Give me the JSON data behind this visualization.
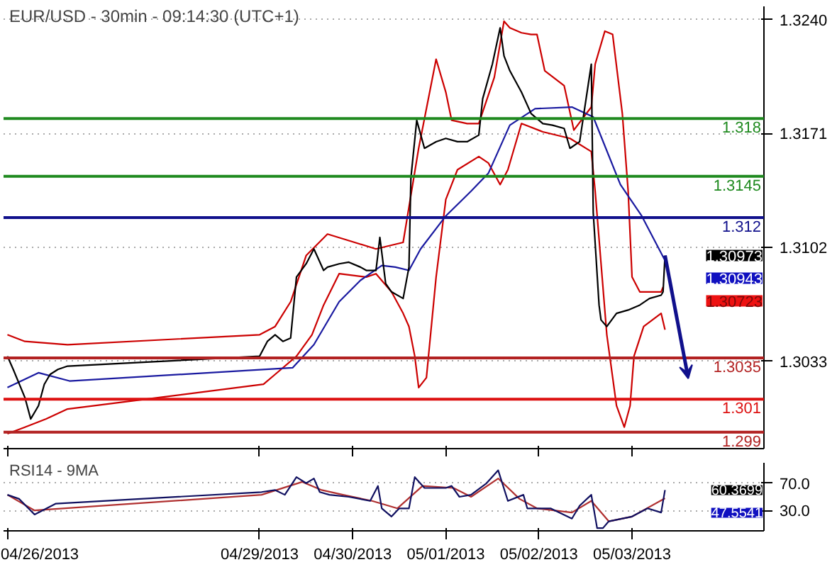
{
  "chart_data": [
    {
      "type": "line",
      "title": "EUR/USD - 30min - 09:14:30 (UTC+1)",
      "xlim": [
        "2013-04-26T06:00",
        "2013-05-04T10:00"
      ],
      "xticks": [
        {
          "value": "2013-04-26T07:00",
          "label": null
        },
        {
          "value": "2013-04-29",
          "label": null
        },
        {
          "value": "2013-04-30",
          "label": null
        },
        {
          "value": "2013-05-01",
          "label": null
        },
        {
          "value": "2013-05-02",
          "label": null
        },
        {
          "value": "2013-05-03",
          "label": null
        }
      ],
      "ylim": [
        1.298,
        1.3248
      ],
      "yticks": [
        {
          "value": 1.324,
          "label": "1.3240"
        },
        1.3171,
        1.3102,
        1.3033
      ],
      "grid": "y",
      "tick_labels": "y",
      "series": [
        {
          "color": "#cc0000",
          "x": [
            "2013-04-26T07:00",
            "2013-04-26T11:30",
            "2013-04-26T22:30",
            "2013-04-29T00:00",
            "2013-04-29T04:00",
            "2013-04-29T08:00",
            "2013-04-29T12:00",
            "2013-04-29T17:30",
            "2013-04-30T00:30",
            "2013-04-30T06:00",
            "2013-04-30T13:00",
            "2013-04-30T17:00",
            "2013-04-30T21:30",
            "2013-05-01T00:00",
            "2013-05-01T01:30",
            "2013-05-01T05:30",
            "2013-05-01T08:30",
            "2013-05-01T12:30",
            "2013-05-01T15:00",
            "2013-05-01T16:30",
            "2013-05-01T19:30",
            "2013-05-01T22:00",
            "2013-05-01T23:30",
            "2013-05-02T01:30",
            "2013-05-02T06:30",
            "2013-05-02T09:00",
            "2013-05-02T13:30",
            "2013-05-02T14:30",
            "2013-05-02T17:00",
            "2013-05-02T19:00",
            "2013-05-02T21:30",
            "2013-05-02T23:00",
            "2013-05-03T00:00",
            "2013-05-03T02:00",
            "2013-05-03T07:30",
            "2013-05-03T08:00"
          ],
          "values": [
            1.3049,
            1.3045,
            1.3043,
            1.3049,
            1.3054,
            1.3069,
            1.3097,
            1.311,
            1.3105,
            1.3101,
            1.3105,
            1.3162,
            1.3216,
            1.3196,
            1.3179,
            1.3177,
            1.3177,
            1.3205,
            1.3239,
            1.3235,
            1.3232,
            1.3231,
            1.3231,
            1.3209,
            1.32,
            1.3173,
            1.3187,
            1.3213,
            1.3233,
            1.3231,
            1.3183,
            1.3136,
            1.3084,
            1.3075,
            1.3075,
            1.3078
          ]
        },
        {
          "color": "#cc0000",
          "x": [
            "2013-04-26T07:00",
            "2013-04-26T11:30",
            "2013-04-26T17:00",
            "2013-04-26T22:30",
            "2013-04-29T01:00",
            "2013-04-29T04:00",
            "2013-04-29T09:30",
            "2013-04-29T13:30",
            "2013-04-29T16:30",
            "2013-04-29T20:30",
            "2013-04-30T03:30",
            "2013-04-30T06:00",
            "2013-04-30T10:00",
            "2013-04-30T13:00",
            "2013-04-30T14:30",
            "2013-04-30T16:00",
            "2013-04-30T17:00",
            "2013-04-30T19:00",
            "2013-04-30T21:30",
            "2013-05-01T00:00",
            "2013-05-01T03:00",
            "2013-05-01T08:30",
            "2013-05-01T11:00",
            "2013-05-01T14:00",
            "2013-05-01T16:00",
            "2013-05-01T19:30",
            "2013-05-02T01:00",
            "2013-05-02T08:00",
            "2013-05-02T13:30",
            "2013-05-02T14:30",
            "2013-05-02T17:30",
            "2013-05-02T20:00",
            "2013-05-02T22:00",
            "2013-05-02T23:30",
            "2013-05-03T00:30",
            "2013-05-03T03:00",
            "2013-05-03T07:30",
            "2013-05-03T08:30"
          ],
          "values": [
            1.2989,
            1.2993,
            1.2998,
            1.3004,
            1.3019,
            1.3025,
            1.3036,
            1.3049,
            1.3067,
            1.3086,
            1.3084,
            1.3086,
            1.3075,
            1.3062,
            1.3054,
            1.3036,
            1.3017,
            1.3023,
            1.3084,
            1.3131,
            1.3149,
            1.3157,
            1.3153,
            1.314,
            1.3149,
            1.3177,
            1.3172,
            1.3168,
            1.316,
            1.3136,
            1.3049,
            1.3006,
            1.2993,
            1.3006,
            1.3036,
            1.3054,
            1.3062,
            1.3052
          ]
        },
        {
          "color": "#1a1aa0",
          "x": [
            "2013-04-26T07:00",
            "2013-04-26T15:00",
            "2013-04-26T23:00",
            "2013-04-29T08:30",
            "2013-04-29T14:00",
            "2013-04-29T20:30",
            "2013-04-30T02:00",
            "2013-04-30T07:30",
            "2013-04-30T11:00",
            "2013-04-30T14:30",
            "2013-04-30T17:30",
            "2013-05-01T00:00",
            "2013-05-01T06:30",
            "2013-05-01T11:00",
            "2013-05-01T16:30",
            "2013-05-01T23:00",
            "2013-05-02T08:30",
            "2013-05-02T14:00",
            "2013-05-02T21:00",
            "2013-05-03T02:30",
            "2013-05-03T08:30"
          ],
          "values": [
            1.3017,
            1.3026,
            1.3021,
            1.3029,
            1.3043,
            1.3069,
            1.3082,
            1.3091,
            1.309,
            1.3088,
            1.3101,
            1.3121,
            1.3136,
            1.3147,
            1.3176,
            1.3186,
            1.3187,
            1.3181,
            1.314,
            1.3121,
            1.3094
          ]
        },
        {
          "color": "#000000",
          "x": [
            "2013-04-26T07:00",
            "2013-04-26T08:30",
            "2013-04-26T11:30",
            "2013-04-26T13:00",
            "2013-04-26T15:00",
            "2013-04-26T16:30",
            "2013-04-26T18:00",
            "2013-04-26T20:00",
            "2013-04-26T22:30",
            "2013-04-29T00:00",
            "2013-04-29T02:00",
            "2013-04-29T04:00",
            "2013-04-29T06:00",
            "2013-04-29T08:00",
            "2013-04-29T09:30",
            "2013-04-29T12:00",
            "2013-04-29T14:00",
            "2013-04-29T16:30",
            "2013-04-29T17:30",
            "2013-04-29T20:30",
            "2013-04-29T23:00",
            "2013-04-30T02:00",
            "2013-04-30T03:30",
            "2013-04-30T06:00",
            "2013-04-30T07:00",
            "2013-04-30T08:30",
            "2013-04-30T10:00",
            "2013-04-30T13:00",
            "2013-04-30T14:30",
            "2013-04-30T15:00",
            "2013-04-30T16:30",
            "2013-04-30T18:30",
            "2013-04-30T21:30",
            "2013-05-01T00:00",
            "2013-05-01T03:00",
            "2013-05-01T05:30",
            "2013-05-01T08:30",
            "2013-05-01T09:30",
            "2013-05-01T12:00",
            "2013-05-01T14:00",
            "2013-05-01T15:00",
            "2013-05-01T16:30",
            "2013-05-01T19:30",
            "2013-05-01T22:00",
            "2013-05-02T01:00",
            "2013-05-02T03:30",
            "2013-05-02T06:30",
            "2013-05-02T08:00",
            "2013-05-02T10:30",
            "2013-05-02T13:30",
            "2013-05-02T14:00",
            "2013-05-02T15:30",
            "2013-05-02T16:00",
            "2013-05-02T17:30",
            "2013-05-02T20:00",
            "2013-05-02T23:00",
            "2013-05-03T02:00",
            "2013-05-03T04:30",
            "2013-05-03T07:30",
            "2013-05-03T08:00",
            "2013-05-03T08:30"
          ],
          "values": [
            1.3036,
            1.3028,
            1.3011,
            1.2998,
            1.3006,
            1.3019,
            1.3025,
            1.3028,
            1.303,
            1.3036,
            1.3045,
            1.3049,
            1.3045,
            1.3047,
            1.3084,
            1.3092,
            1.3101,
            1.3088,
            1.309,
            1.3092,
            1.3093,
            1.309,
            1.3088,
            1.3088,
            1.3108,
            1.308,
            1.3075,
            1.3071,
            1.309,
            1.3144,
            1.3179,
            1.3162,
            1.3166,
            1.3168,
            1.3166,
            1.3166,
            1.317,
            1.3192,
            1.3213,
            1.3235,
            1.3218,
            1.3209,
            1.3196,
            1.3183,
            1.3177,
            1.3176,
            1.3174,
            1.3162,
            1.3166,
            1.3213,
            1.3123,
            1.3067,
            1.3058,
            1.3054,
            1.3062,
            1.3064,
            1.3067,
            1.3071,
            1.3073,
            1.3075,
            1.3097
          ]
        }
      ],
      "ref_lines": [
        {
          "axis": "y",
          "value": 1.318,
          "label": "1.318",
          "color": "#1f8a1f"
        },
        {
          "axis": "y",
          "value": 1.3145,
          "label": "1.3145",
          "color": "#1f8a1f"
        },
        {
          "axis": "y",
          "value": 1.312,
          "label": "1.312",
          "color": "#10108c"
        },
        {
          "axis": "y",
          "value": 1.3035,
          "label": "1.3035",
          "color": "#b22222"
        },
        {
          "axis": "y",
          "value": 1.301,
          "label": "1.301",
          "color": "#dd1111"
        },
        {
          "axis": "y",
          "value": 1.299,
          "label": "1.299",
          "color": "#b22222"
        }
      ],
      "annotations": [
        "1.30973",
        "1.30943",
        "1.30723"
      ]
    },
    {
      "type": "line",
      "title": "RSI14 - 9MA",
      "xlim": [
        "2013-04-26T06:00",
        "2013-05-04T10:00"
      ],
      "xticks": [
        {
          "value": "2013-04-26T07:00",
          "label": "04/26/2013"
        },
        {
          "value": "2013-04-29",
          "label": "04/29/2013"
        },
        {
          "value": "2013-04-30",
          "label": "04/30/2013"
        },
        {
          "value": "2013-05-01",
          "label": "05/01/2013"
        },
        {
          "value": "2013-05-02",
          "label": "05/02/2013"
        },
        {
          "value": "2013-05-03",
          "label": "05/03/2013"
        }
      ],
      "ylim": [
        0,
        100
      ],
      "yticks": [
        {
          "value": 70,
          "label": "70.0"
        },
        {
          "value": 30,
          "label": "30.0"
        }
      ],
      "grid": "y",
      "series": [
        {
          "color": "#b03030",
          "x": [
            "2013-04-26T07:00",
            "2013-04-26T14:00",
            "2013-04-29T00:30",
            "2013-04-29T11:00",
            "2013-04-29T16:00",
            "2013-04-29T21:30",
            "2013-04-30T05:00",
            "2013-04-30T11:30",
            "2013-04-30T18:00",
            "2013-05-01T02:00",
            "2013-05-01T06:30",
            "2013-05-01T13:30",
            "2013-05-01T19:00",
            "2013-05-01T23:30",
            "2013-05-02T08:30",
            "2013-05-02T13:30",
            "2013-05-02T18:00",
            "2013-05-03T00:00",
            "2013-05-03T08:30"
          ],
          "values": [
            53,
            30,
            53,
            72,
            60,
            53,
            44,
            33,
            66,
            63,
            50,
            77,
            47,
            33,
            27,
            44,
            14,
            21,
            48
          ]
        },
        {
          "color": "#101060",
          "x": [
            "2013-04-26T07:00",
            "2013-04-26T10:00",
            "2013-04-26T14:00",
            "2013-04-26T19:30",
            "2013-04-29T00:30",
            "2013-04-29T04:00",
            "2013-04-29T06:30",
            "2013-04-29T09:30",
            "2013-04-29T12:00",
            "2013-04-29T14:00",
            "2013-04-29T15:30",
            "2013-04-29T18:00",
            "2013-04-29T23:00",
            "2013-04-30T04:30",
            "2013-04-30T06:30",
            "2013-04-30T07:30",
            "2013-04-30T10:00",
            "2013-04-30T12:00",
            "2013-04-30T14:30",
            "2013-04-30T16:00",
            "2013-04-30T18:30",
            "2013-05-01T00:00",
            "2013-05-01T01:30",
            "2013-05-01T03:30",
            "2013-05-01T06:30",
            "2013-05-01T10:30",
            "2013-05-01T13:30",
            "2013-05-01T16:00",
            "2013-05-01T20:00",
            "2013-05-01T21:00",
            "2013-05-02T03:00",
            "2013-05-02T08:30",
            "2013-05-02T10:30",
            "2013-05-02T13:30",
            "2013-05-02T15:00",
            "2013-05-02T16:30",
            "2013-05-02T18:00",
            "2013-05-03T00:00",
            "2013-05-03T04:00",
            "2013-05-03T07:30",
            "2013-05-03T08:30"
          ],
          "values": [
            53,
            47,
            24,
            40,
            57,
            60,
            53,
            79,
            70,
            77,
            57,
            53,
            50,
            44,
            66,
            33,
            21,
            33,
            33,
            79,
            63,
            63,
            66,
            50,
            53,
            70,
            89,
            44,
            53,
            33,
            33,
            18,
            37,
            53,
            4,
            4,
            14,
            21,
            33,
            27,
            60
          ]
        }
      ],
      "annotations": [
        "60.3699",
        "47.5541"
      ]
    }
  ]
}
